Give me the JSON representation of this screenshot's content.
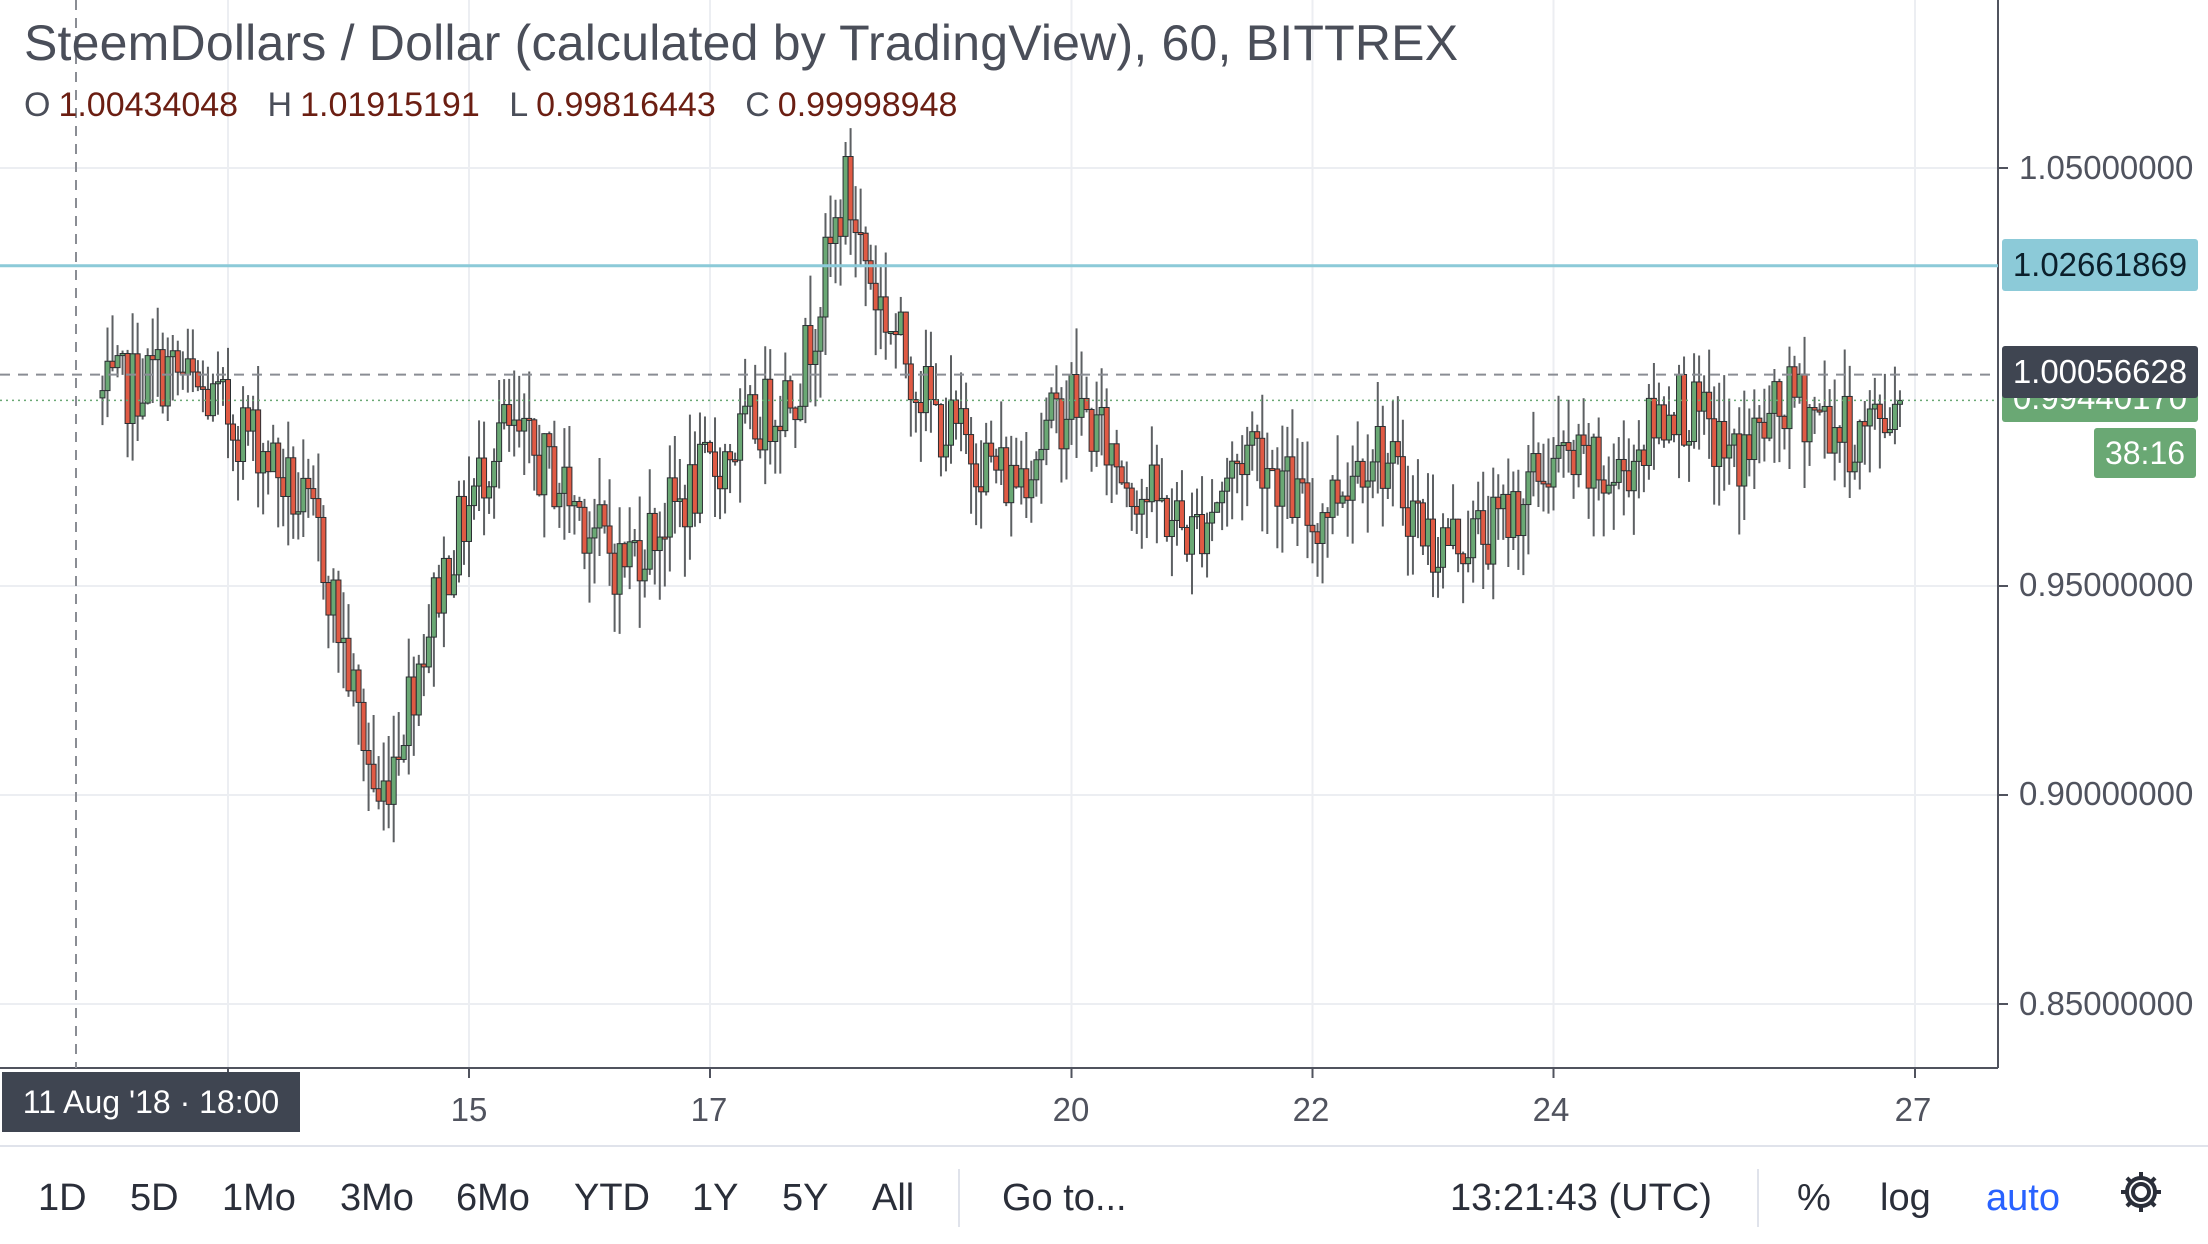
{
  "header": {
    "title": "SteemDollars / Dollar (calculated by TradingView), 60, BITTREX",
    "ohlc": [
      {
        "key": "O",
        "value": "1.00434048"
      },
      {
        "key": "H",
        "value": "1.01915191"
      },
      {
        "key": "L",
        "value": "0.99816443"
      },
      {
        "key": "C",
        "value": "0.99998948"
      }
    ]
  },
  "price_tags": {
    "horizontal_line": "1.02661869",
    "crosshair_price": "1.00056628",
    "last_price": "0.99440170",
    "countdown": "38:16"
  },
  "crosshair_date": "11 Aug '18 · 18:00",
  "toolbar": {
    "ranges": [
      "1D",
      "5D",
      "1Mo",
      "3Mo",
      "6Mo",
      "YTD",
      "1Y",
      "5Y",
      "All"
    ],
    "goto": "Go to...",
    "clock": "13:21:43 (UTC)",
    "percent": "%",
    "log": "log",
    "auto": "auto",
    "settings_icon": "gear-icon"
  },
  "colors": {
    "up": "#6aa874",
    "down": "#e05a44",
    "hline": "#8ccad8",
    "grid": "#eceef2",
    "active": "#2962ff"
  },
  "chart_data": {
    "type": "candlestick",
    "symbol": "SteemDollars / Dollar",
    "interval": "60",
    "exchange": "BITTREX",
    "y_ticks": [
      "1.05000000",
      "0.95000000",
      "0.90000000",
      "0.85000000"
    ],
    "x_ticks": [
      "15",
      "17",
      "20",
      "22",
      "24",
      "27"
    ],
    "ylim": [
      0.835,
      1.075
    ],
    "x_range": [
      "2018-08-12",
      "2018-08-27"
    ],
    "horizontal_line": 1.02661869,
    "crosshair": {
      "date": "2018-08-11 18:00",
      "price": 1.00056628
    },
    "last_price": 0.9944017,
    "checkpoints": [
      {
        "x": "2018-08-12 00:00",
        "close": 0.995
      },
      {
        "x": "2018-08-12 12:00",
        "close": 1.002
      },
      {
        "x": "2018-08-13 06:00",
        "close": 0.985
      },
      {
        "x": "2018-08-13 18:00",
        "close": 0.962
      },
      {
        "x": "2018-08-14 06:00",
        "close": 0.897
      },
      {
        "x": "2018-08-14 18:00",
        "close": 0.95
      },
      {
        "x": "2018-08-15 06:00",
        "close": 0.988
      },
      {
        "x": "2018-08-15 18:00",
        "close": 0.975
      },
      {
        "x": "2018-08-16 06:00",
        "close": 0.955
      },
      {
        "x": "2018-08-16 18:00",
        "close": 0.97
      },
      {
        "x": "2018-08-17 06:00",
        "close": 0.985
      },
      {
        "x": "2018-08-17 18:00",
        "close": 1.0
      },
      {
        "x": "2018-08-18 03:00",
        "close": 1.045
      },
      {
        "x": "2018-08-18 09:00",
        "close": 1.02
      },
      {
        "x": "2018-08-18 21:00",
        "close": 0.99
      },
      {
        "x": "2018-08-19 12:00",
        "close": 0.975
      },
      {
        "x": "2018-08-20 00:00",
        "close": 0.995
      },
      {
        "x": "2018-08-20 12:00",
        "close": 0.975
      },
      {
        "x": "2018-08-21 00:00",
        "close": 0.962
      },
      {
        "x": "2018-08-21 12:00",
        "close": 0.985
      },
      {
        "x": "2018-08-22 00:00",
        "close": 0.965
      },
      {
        "x": "2018-08-22 12:00",
        "close": 0.985
      },
      {
        "x": "2018-08-23 00:00",
        "close": 0.96
      },
      {
        "x": "2018-08-23 12:00",
        "close": 0.963
      },
      {
        "x": "2018-08-24 00:00",
        "close": 0.98
      },
      {
        "x": "2018-08-24 12:00",
        "close": 0.975
      },
      {
        "x": "2018-08-25 00:00",
        "close": 0.995
      },
      {
        "x": "2018-08-25 12:00",
        "close": 0.98
      },
      {
        "x": "2018-08-26 00:00",
        "close": 0.995
      },
      {
        "x": "2018-08-26 12:00",
        "close": 0.985
      },
      {
        "x": "2018-08-26 21:00",
        "close": 0.994
      }
    ]
  }
}
